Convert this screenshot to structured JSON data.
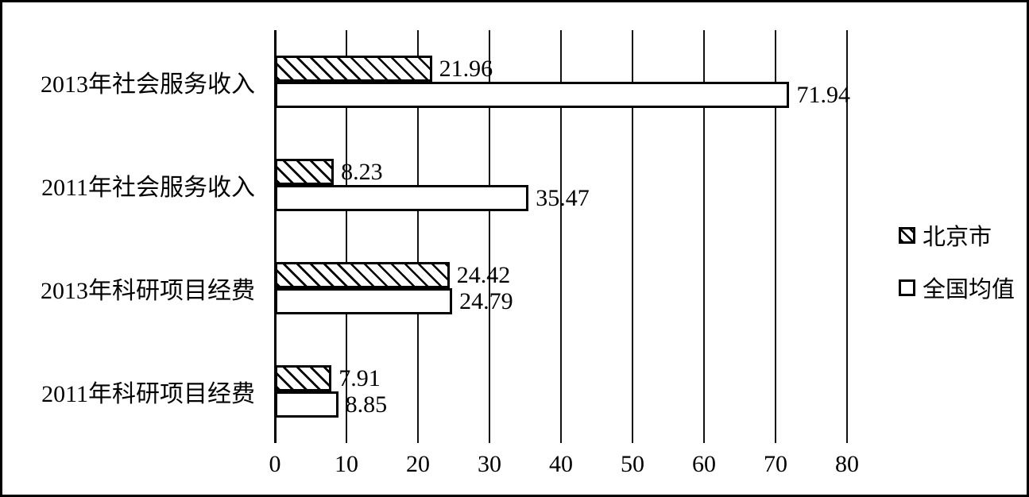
{
  "chart_data": {
    "type": "bar",
    "orientation": "horizontal",
    "title": "",
    "categories": [
      "2013年社会服务收入",
      "2011年社会服务收入",
      "2013年科研项目经费",
      "2011年科研项目经费"
    ],
    "series": [
      {
        "name": "北京市",
        "pattern": "diagonal-hatch",
        "values": [
          21.96,
          8.23,
          24.42,
          7.91
        ]
      },
      {
        "name": "全国均值",
        "pattern": "solid-white",
        "values": [
          71.94,
          35.47,
          24.79,
          8.85
        ]
      }
    ],
    "x_ticks": [
      "0",
      "10",
      "20",
      "30",
      "40",
      "50",
      "60",
      "70",
      "80"
    ],
    "xlim": [
      0,
      80
    ],
    "grid": "vertical",
    "legend_position": "right-middle",
    "data_labels": true,
    "colors": {
      "line": "#000000",
      "text": "#000000",
      "bar_fill": "#ffffff",
      "background": "#ffffff"
    }
  }
}
